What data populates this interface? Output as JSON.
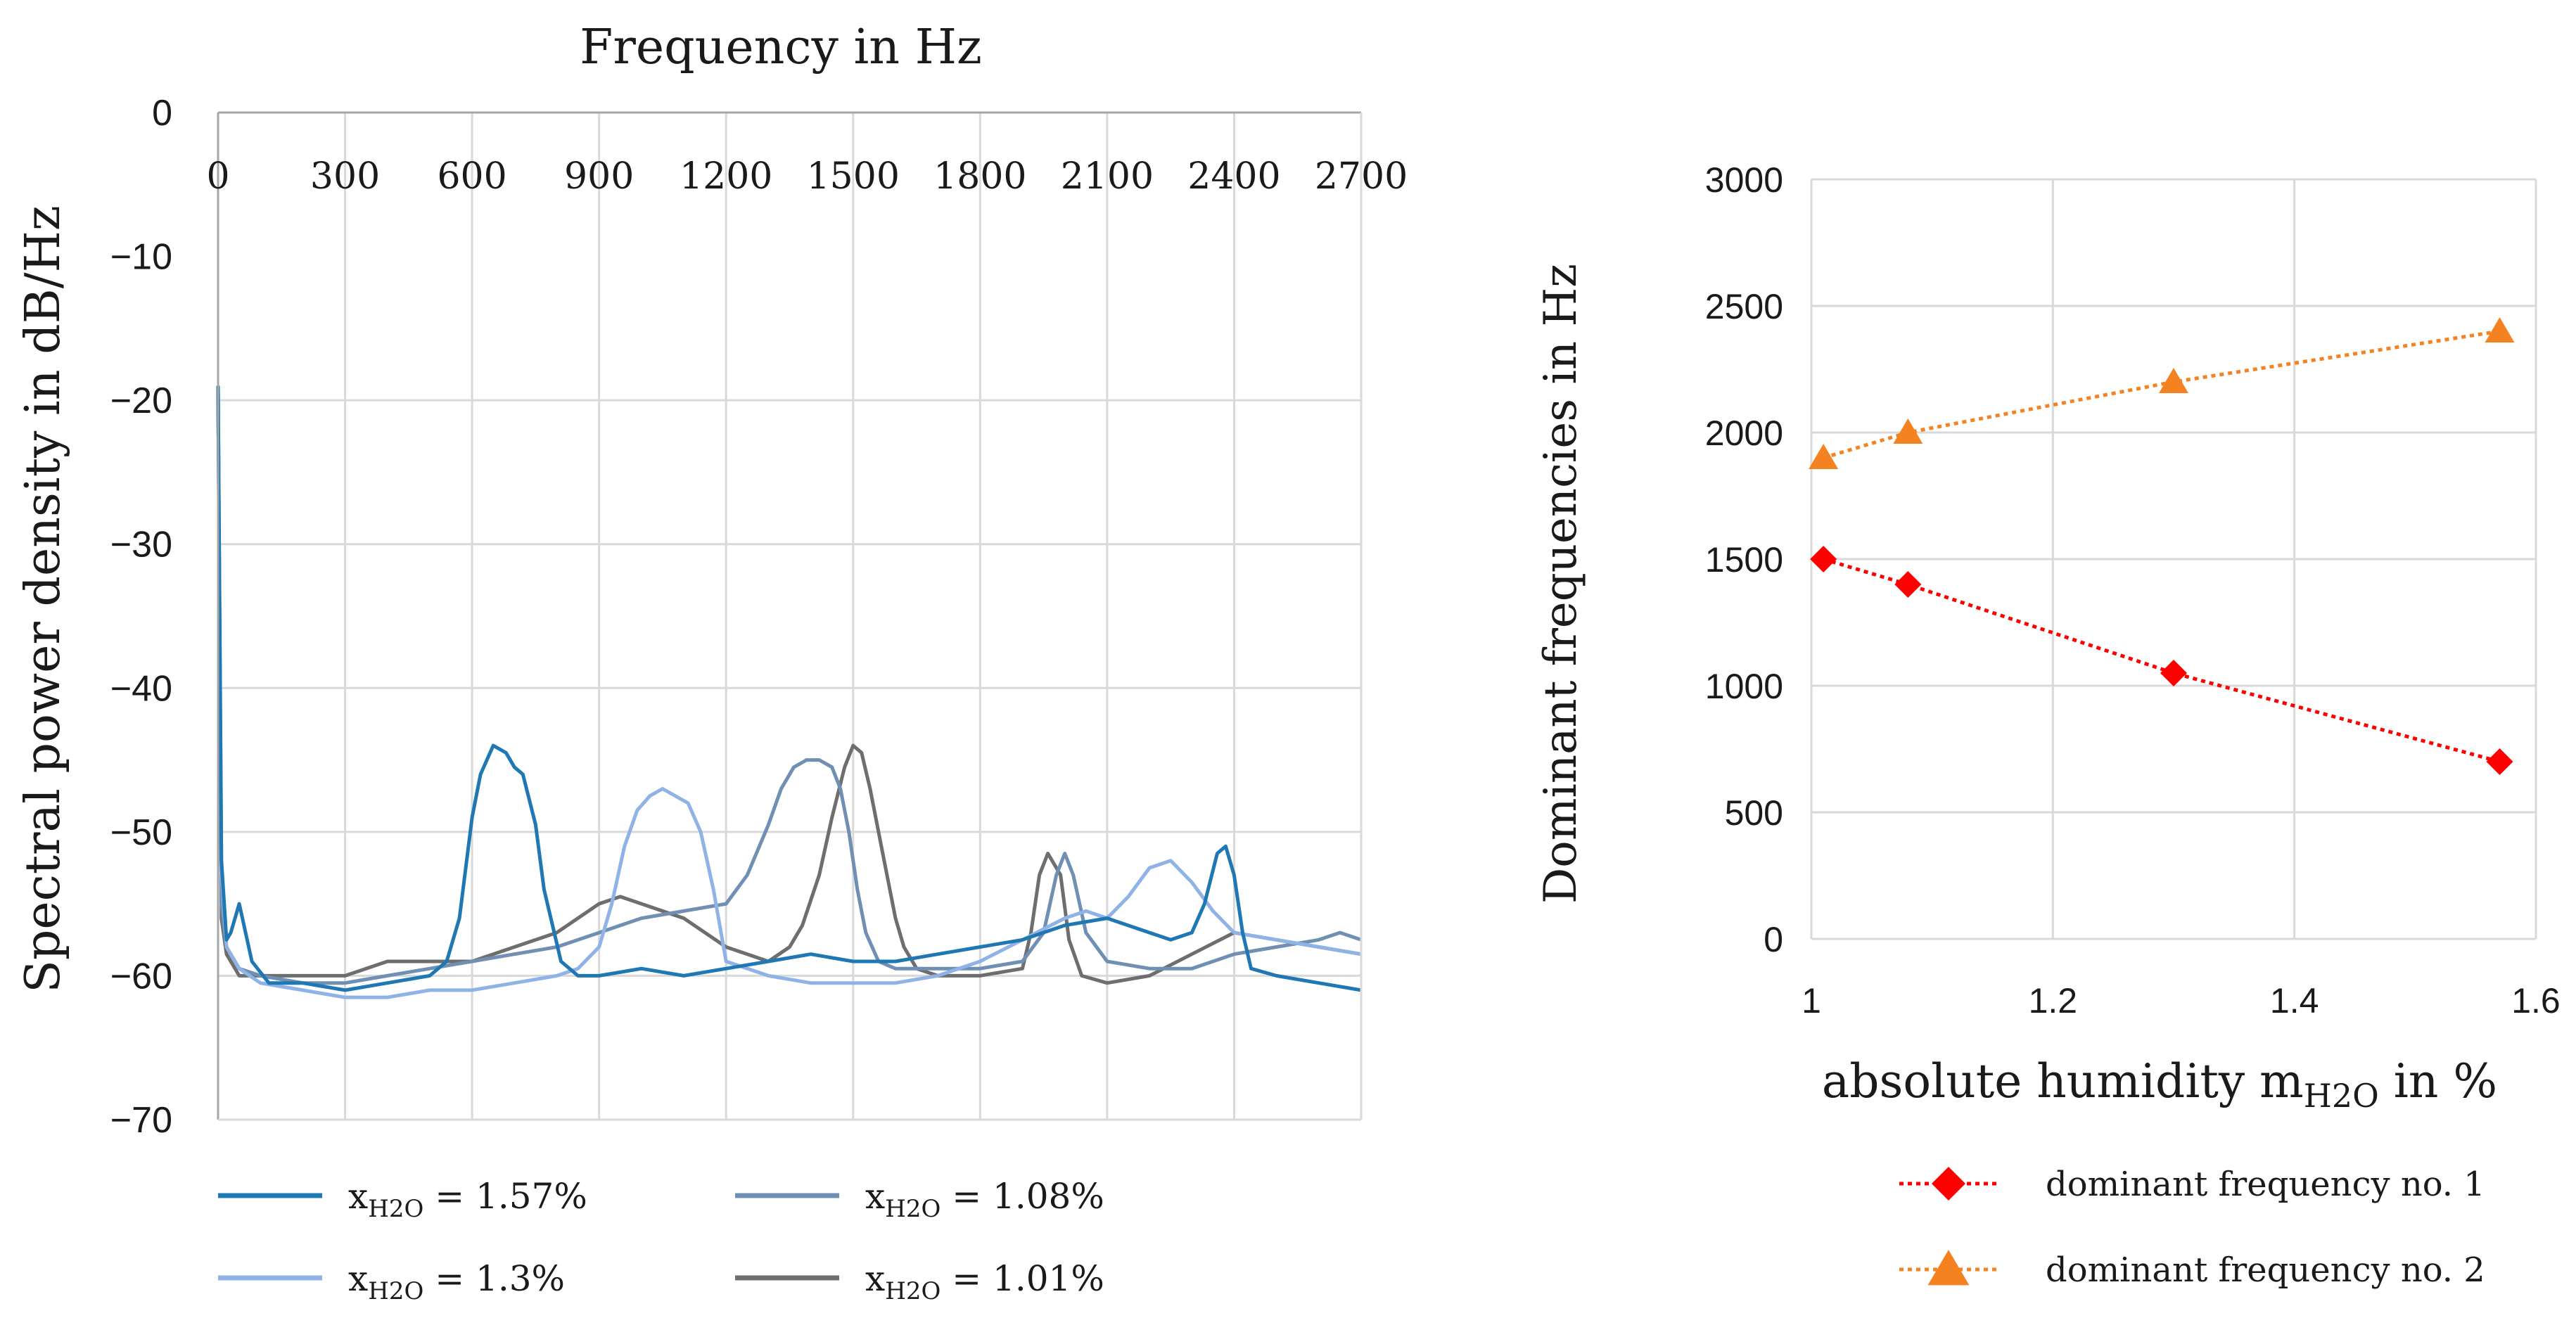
{
  "colors": {
    "s157": "#1f77b4",
    "s130": "#8fb3e6",
    "s108": "#6f8fb3",
    "s101": "#6e6e6e",
    "grid": "#d9d9d9",
    "dom1": "#ff0000",
    "dom2": "#f58220"
  },
  "chart_data": [
    {
      "type": "line",
      "title": "Frequency in Hz",
      "xlabel": "Frequency in Hz",
      "ylabel": "Spectral power density in dB/Hz",
      "xlim": [
        0,
        2700
      ],
      "ylim": [
        -70,
        0
      ],
      "x_ticks": [
        "0",
        "300",
        "600",
        "900",
        "1200",
        "1500",
        "1800",
        "2100",
        "2400",
        "2700"
      ],
      "y_ticks": [
        "0",
        "−10",
        "−20",
        "−30",
        "−40",
        "−50",
        "−60",
        "−70"
      ],
      "grid": true,
      "legend_position": "bottom",
      "series": [
        {
          "key": "s157",
          "name_main": "x",
          "name_sub": "H2O",
          "name_rest": " = 1.57%",
          "x": [
            0,
            8,
            20,
            30,
            50,
            80,
            120,
            200,
            300,
            400,
            500,
            540,
            570,
            600,
            620,
            650,
            680,
            700,
            720,
            750,
            770,
            790,
            810,
            850,
            900,
            1000,
            1100,
            1200,
            1300,
            1400,
            1500,
            1600,
            1700,
            1800,
            1900,
            2000,
            2100,
            2200,
            2250,
            2300,
            2330,
            2360,
            2380,
            2400,
            2420,
            2440,
            2500,
            2600,
            2700
          ],
          "values": [
            -19,
            -52,
            -57.5,
            -57,
            -55,
            -59,
            -60.5,
            -60.5,
            -61,
            -60.5,
            -60,
            -59,
            -56,
            -49,
            -46,
            -44,
            -44.5,
            -45.5,
            -46,
            -49.5,
            -54,
            -56.5,
            -59,
            -60,
            -60,
            -59.5,
            -60,
            -59.5,
            -59,
            -58.5,
            -59,
            -59,
            -58.5,
            -58,
            -57.5,
            -56.5,
            -56,
            -57,
            -57.5,
            -57,
            -55,
            -51.5,
            -51,
            -53,
            -57,
            -59.5,
            -60,
            -60.5,
            -61
          ]
        },
        {
          "key": "s130",
          "name_main": "x",
          "name_sub": "H2O",
          "name_rest": " = 1.3%",
          "x": [
            0,
            8,
            20,
            50,
            100,
            200,
            300,
            400,
            500,
            600,
            700,
            800,
            850,
            900,
            930,
            960,
            990,
            1020,
            1050,
            1080,
            1110,
            1140,
            1170,
            1200,
            1300,
            1400,
            1500,
            1600,
            1700,
            1800,
            1900,
            2000,
            2050,
            2100,
            2150,
            2200,
            2250,
            2300,
            2350,
            2400,
            2500,
            2600,
            2700
          ],
          "values": [
            -19,
            -53,
            -58,
            -59.5,
            -60.5,
            -61,
            -61.5,
            -61.5,
            -61,
            -61,
            -60.5,
            -60,
            -59.5,
            -58,
            -55,
            -51,
            -48.5,
            -47.5,
            -47,
            -47.5,
            -48,
            -50,
            -54,
            -59,
            -60,
            -60.5,
            -60.5,
            -60.5,
            -60,
            -59,
            -57.5,
            -56,
            -55.5,
            -56,
            -54.5,
            -52.5,
            -52,
            -53.5,
            -55.5,
            -57,
            -57.5,
            -58,
            -58.5
          ]
        },
        {
          "key": "s108",
          "name_main": "x",
          "name_sub": "H2O",
          "name_rest": " = 1.08%",
          "x": [
            0,
            8,
            20,
            50,
            100,
            200,
            300,
            400,
            500,
            600,
            700,
            800,
            900,
            1000,
            1100,
            1200,
            1250,
            1300,
            1330,
            1360,
            1390,
            1420,
            1450,
            1470,
            1490,
            1510,
            1530,
            1560,
            1600,
            1700,
            1800,
            1900,
            1950,
            1980,
            2000,
            2020,
            2050,
            2100,
            2200,
            2300,
            2400,
            2500,
            2600,
            2650,
            2700
          ],
          "values": [
            -19,
            -55,
            -58,
            -59.5,
            -60,
            -60.5,
            -60.5,
            -60,
            -59.5,
            -59,
            -58.5,
            -58,
            -57,
            -56,
            -55.5,
            -55,
            -53,
            -49.5,
            -47,
            -45.5,
            -45,
            -45,
            -45.5,
            -47,
            -50,
            -54,
            -57,
            -59,
            -59.5,
            -59.5,
            -59.5,
            -59,
            -57,
            -53,
            -51.5,
            -53,
            -57,
            -59,
            -59.5,
            -59.5,
            -58.5,
            -58,
            -57.5,
            -57,
            -57.5
          ]
        },
        {
          "key": "s101",
          "name_main": "x",
          "name_sub": "H2O",
          "name_rest": " = 1.01%",
          "x": [
            0,
            8,
            20,
            50,
            100,
            200,
            300,
            400,
            500,
            600,
            700,
            800,
            850,
            900,
            950,
            1000,
            1050,
            1100,
            1150,
            1200,
            1250,
            1300,
            1350,
            1380,
            1420,
            1450,
            1480,
            1500,
            1520,
            1540,
            1570,
            1600,
            1620,
            1650,
            1700,
            1800,
            1900,
            1920,
            1940,
            1960,
            1990,
            2010,
            2040,
            2100,
            2200,
            2300,
            2400,
            2500,
            2600,
            2700
          ],
          "values": [
            -19,
            -56,
            -58.5,
            -60,
            -60,
            -60,
            -60,
            -59,
            -59,
            -59,
            -58,
            -57,
            -56,
            -55,
            -54.5,
            -55,
            -55.5,
            -56,
            -57,
            -58,
            -58.5,
            -59,
            -58,
            -56.5,
            -53,
            -49,
            -45.5,
            -44,
            -44.5,
            -47,
            -51.5,
            -56,
            -58,
            -59.5,
            -60,
            -60,
            -59.5,
            -57,
            -53,
            -51.5,
            -53,
            -57.5,
            -60,
            -60.5,
            -60,
            -58.5,
            -57,
            -57.5,
            -58,
            -58.5
          ]
        }
      ]
    },
    {
      "type": "scatter",
      "title": "",
      "xlabel_main": "absolute humidity m",
      "xlabel_sub": "H2O",
      "xlabel_rest": " in %",
      "ylabel": "Dominant frequencies in Hz",
      "xlim": [
        1,
        1.6
      ],
      "ylim": [
        0,
        3000
      ],
      "x_ticks": [
        "1",
        "1.2",
        "1.4",
        "1.6"
      ],
      "y_ticks": [
        "0",
        "500",
        "1000",
        "1500",
        "2000",
        "2500",
        "3000"
      ],
      "grid": true,
      "legend_position": "bottom-right",
      "series": [
        {
          "key": "dom1",
          "name": "dominant frequency no. 1",
          "marker": "diamond",
          "x": [
            1.01,
            1.08,
            1.3,
            1.57
          ],
          "values": [
            1500,
            1400,
            1050,
            700
          ]
        },
        {
          "key": "dom2",
          "name": "dominant frequency no. 2",
          "marker": "triangle",
          "x": [
            1.01,
            1.08,
            1.3,
            1.57
          ],
          "values": [
            1900,
            2000,
            2200,
            2400
          ]
        }
      ]
    }
  ]
}
